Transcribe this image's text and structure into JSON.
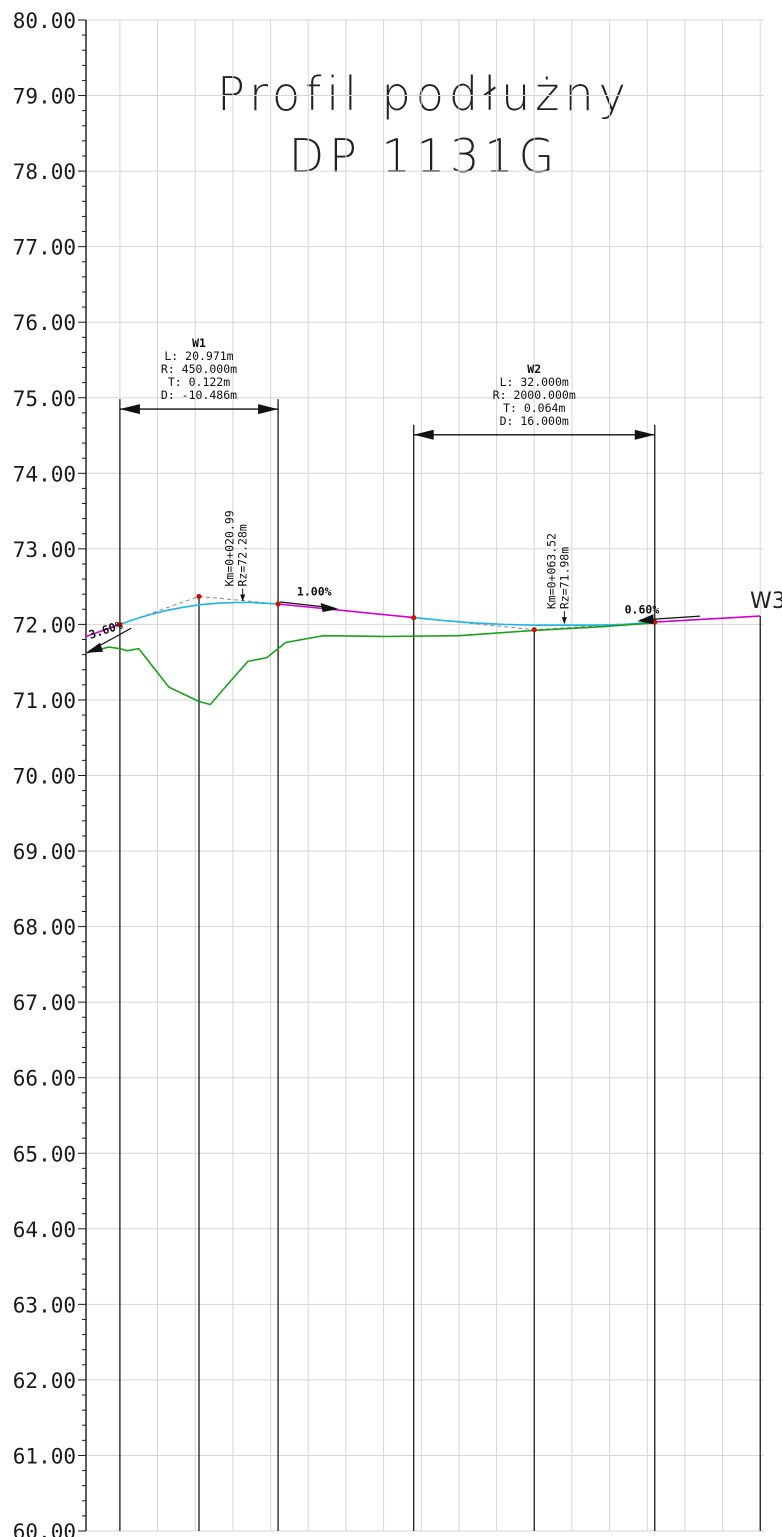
{
  "title_lines": [
    "Profil podłużny",
    "DP 1131G"
  ],
  "y_axis": {
    "min": 60,
    "max": 80,
    "major_step": 1,
    "minor_step": 0.2,
    "labels": [
      "80.00",
      "79.00",
      "78.00",
      "77.00",
      "76.00",
      "75.00",
      "74.00",
      "73.00",
      "72.00",
      "71.00",
      "70.00",
      "69.00",
      "68.00",
      "67.00",
      "66.00",
      "65.00",
      "64.00",
      "63.00",
      "62.00",
      "61.00",
      "60.00"
    ]
  },
  "x_axis": {
    "min": -4.5,
    "max": 85.5
  },
  "grid": {
    "vertical_step": 5,
    "horizontal_step": 1,
    "color": "#d6d6d6"
  },
  "stations": [
    0,
    10.5,
    21,
    39,
    55,
    71,
    85
  ],
  "colors": {
    "grade_line": "#d000d0",
    "vertical_curve": "#1fb5e6",
    "terrain": "#1ca01c",
    "tangent": "#8a8a8a",
    "point": "#cc1010"
  },
  "chart_data": {
    "type": "line",
    "x_label": "",
    "y_label": "",
    "series": [
      {
        "key": "grade",
        "x": [
          -4.5,
          0,
          10.5,
          21,
          39,
          55,
          71,
          85
        ],
        "y": [
          71.84,
          72.0,
          72.37,
          72.27,
          72.09,
          71.93,
          72.03,
          72.11
        ]
      },
      {
        "key": "curve_w1",
        "x": [
          0,
          2,
          4,
          6,
          8,
          10.5,
          13,
          15.5,
          17.5,
          19,
          21
        ],
        "y": [
          72.0,
          72.07,
          72.13,
          72.18,
          72.22,
          72.26,
          72.28,
          72.29,
          72.29,
          72.28,
          72.27
        ]
      },
      {
        "key": "curve_w2",
        "x": [
          39,
          43,
          47,
          51,
          55,
          59,
          63,
          67,
          71
        ],
        "y": [
          72.09,
          72.05,
          72.02,
          72.0,
          71.99,
          71.99,
          71.99,
          72.0,
          72.03
        ]
      },
      {
        "key": "terrain",
        "x": [
          -4.5,
          -1.5,
          0,
          1,
          2.5,
          6.5,
          10.5,
          12,
          14.5,
          17,
          19.5,
          21,
          22,
          27,
          35,
          45,
          55,
          64,
          71
        ],
        "y": [
          71.62,
          71.7,
          71.68,
          71.65,
          71.68,
          71.17,
          70.98,
          70.94,
          71.23,
          71.51,
          71.56,
          71.68,
          71.76,
          71.85,
          71.84,
          71.85,
          71.92,
          71.97,
          72.02
        ]
      }
    ],
    "tangent_lines": [
      {
        "x": [
          0,
          10.5,
          21
        ],
        "y": [
          72.0,
          72.37,
          72.27
        ]
      },
      {
        "x": [
          39,
          55,
          71
        ],
        "y": [
          72.09,
          71.93,
          72.03
        ]
      }
    ],
    "points": [
      {
        "x": 0,
        "y": 72.0
      },
      {
        "x": 10.5,
        "y": 72.37
      },
      {
        "x": 21,
        "y": 72.27
      },
      {
        "x": 39,
        "y": 72.09
      },
      {
        "x": 55,
        "y": 71.93
      },
      {
        "x": 71,
        "y": 72.03
      }
    ],
    "curves": [
      {
        "name": "W1",
        "L": "L: 20.971m",
        "R": "R: 450.000m",
        "T": "T: 0.122m",
        "D": "D: -10.486m",
        "x_start": 0,
        "x_end": 21,
        "dim_y": 74.85
      },
      {
        "name": "W2",
        "L": "L: 32.000m",
        "R": "R: 2000.000m",
        "T": "T: 0.064m",
        "D": "D: 16.000m",
        "x_start": 39,
        "x_end": 71,
        "dim_y": 74.51
      }
    ],
    "vertex_labels": [
      {
        "km": "Km=0+020.99",
        "rz": "Rz=72.28m",
        "x": 16.3,
        "y": 72.29
      },
      {
        "km": "Km=0+063.52",
        "rz": "Rz=71.98m",
        "x": 59,
        "y": 71.99
      }
    ],
    "slopes": [
      {
        "text": "3.60%",
        "x": -4.5,
        "y": 71.9
      },
      {
        "text": "1.00%",
        "x": 23.5,
        "y": 72.33
      },
      {
        "text": "0.60%",
        "x": 67,
        "y": 72.12
      }
    ],
    "end_label": "W3"
  }
}
